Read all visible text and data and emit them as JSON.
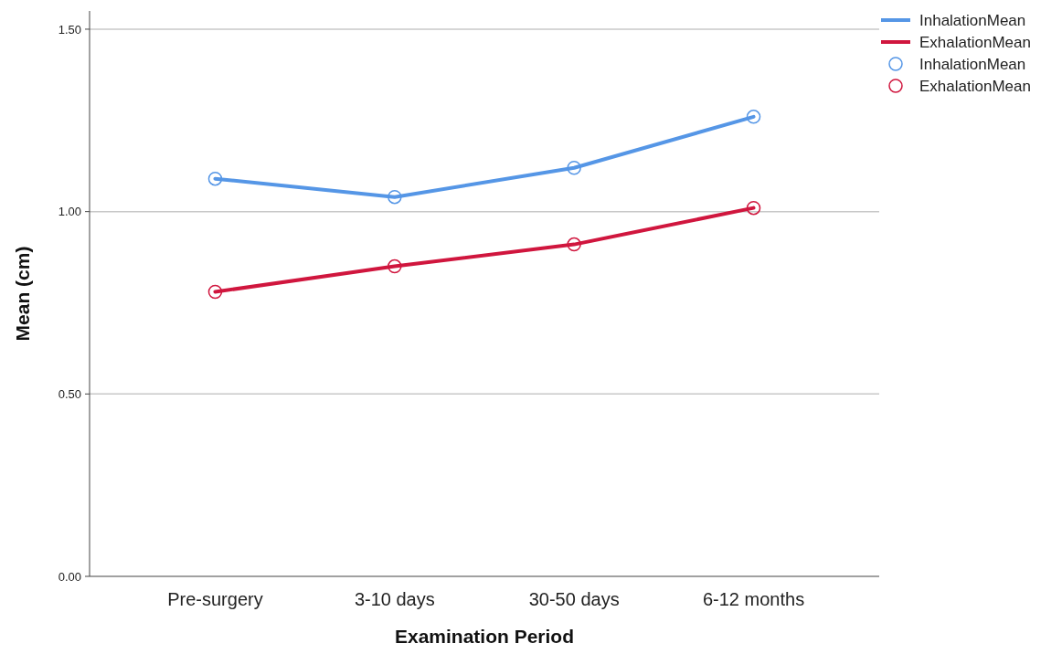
{
  "chart_data": {
    "type": "line",
    "xlabel": "Examination Period",
    "ylabel": "Mean (cm)",
    "categories": [
      "Pre-surgery",
      "3-10 days",
      "30-50 days",
      "6-12 months"
    ],
    "series": [
      {
        "name": "InhalationMean",
        "color": "#5596e6",
        "values": [
          1.09,
          1.04,
          1.12,
          1.26
        ]
      },
      {
        "name": "ExhalationMean",
        "color": "#d0163e",
        "values": [
          0.78,
          0.85,
          0.91,
          1.01
        ]
      }
    ],
    "ylim": [
      0,
      1.55
    ],
    "yticks": [
      {
        "value": 0,
        "label": "0.00"
      },
      {
        "value": 0.5,
        "label": "0.50"
      },
      {
        "value": 1,
        "label": "1.00"
      },
      {
        "value": 1.5,
        "label": "1.50"
      }
    ],
    "grid": "y",
    "legend": "top right",
    "marker": "circle",
    "line_style": "solid"
  }
}
